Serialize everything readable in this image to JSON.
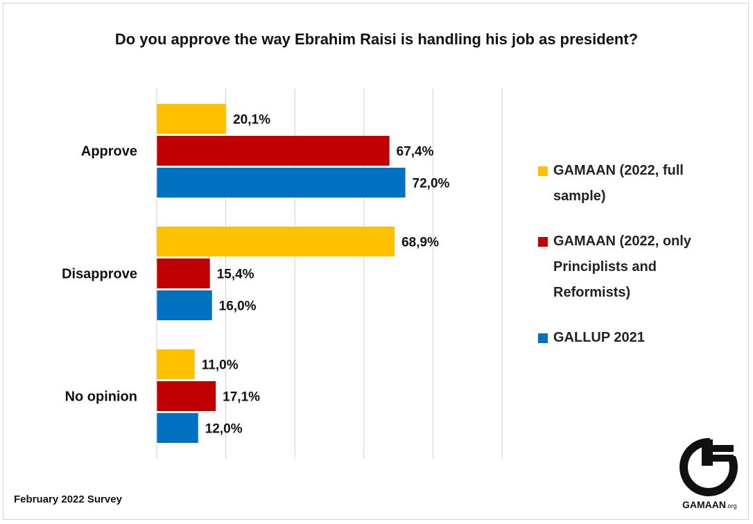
{
  "chart_data": {
    "type": "bar",
    "orientation": "horizontal",
    "title": "Do you approve the way Ebrahim Raisi is handling his job as president?",
    "categories": [
      "Approve",
      "Disapprove",
      "No opinion"
    ],
    "series": [
      {
        "name": "GAMAAN (2022, full sample)",
        "legend_lines": [
          "GAMAAN (2022, full",
          "sample)"
        ],
        "color": "#ffc000",
        "values": [
          20.1,
          68.9,
          11.0
        ],
        "labels": [
          "20,1%",
          "68,9%",
          "11,0%"
        ]
      },
      {
        "name": "GAMAAN (2022, only Principlists and Reformists)",
        "legend_lines": [
          "GAMAAN (2022, only",
          "Principlists and",
          "Reformists)"
        ],
        "color": "#c00000",
        "values": [
          67.4,
          15.4,
          17.1
        ],
        "labels": [
          "67,4%",
          "15,4%",
          "17,1%"
        ]
      },
      {
        "name": "GALLUP 2021",
        "legend_lines": [
          "GALLUP 2021"
        ],
        "color": "#0070c0",
        "values": [
          72.0,
          16.0,
          12.0
        ],
        "labels": [
          "72,0%",
          "16,0%",
          "12,0%"
        ]
      }
    ],
    "xlim": [
      0,
      100
    ],
    "grid": true,
    "legend_position": "right"
  },
  "footer": {
    "note": "February 2022 Survey"
  },
  "logo": {
    "text": "GAMAAN",
    "suffix": ".org"
  }
}
